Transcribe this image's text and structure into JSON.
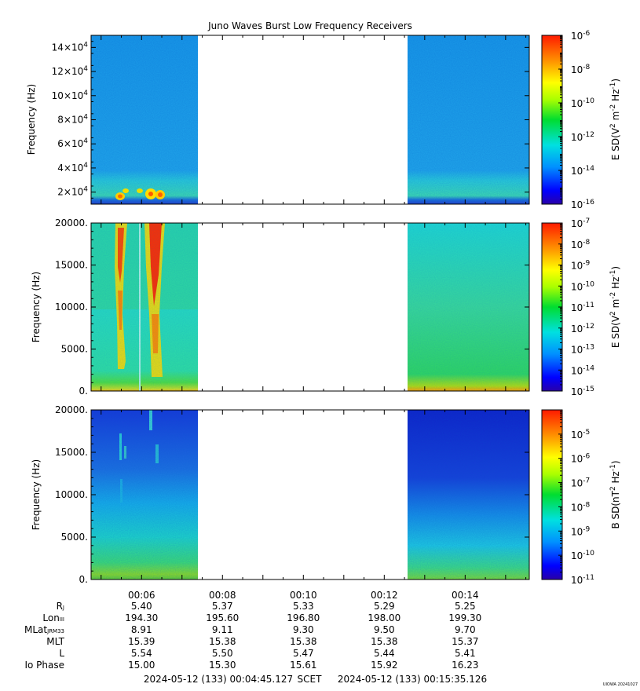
{
  "chart_data": [
    {
      "type": "heatmap",
      "title": "Juno Waves Burst Low Frequency Receivers",
      "ylabel": "Frequency (Hz)",
      "ylim": [
        10000,
        150000
      ],
      "y_ticks": [
        "2×10^4",
        "4×10^4",
        "6×10^4",
        "8×10^4",
        "10×10^4",
        "12×10^4",
        "14×10^4"
      ],
      "colorbar_label": "E SD(V^2 m^-2 Hz^-1)",
      "colorbar_range": [
        1e-16,
        1e-06
      ],
      "colorbar_ticks": [
        "10^-6",
        "10^-8",
        "10^-10",
        "10^-12",
        "10^-14",
        "10^-16"
      ],
      "data_gap": [
        "00:07:30",
        "00:12:35"
      ]
    },
    {
      "type": "heatmap",
      "ylabel": "Frequency (Hz)",
      "ylim": [
        0,
        20000
      ],
      "y_ticks": [
        "0.",
        "5000.",
        "10000.",
        "15000.",
        "20000."
      ],
      "colorbar_label": "E SD(V^2 m^-2 Hz^-1)",
      "colorbar_range": [
        1e-15,
        1e-07
      ],
      "colorbar_ticks": [
        "10^-7",
        "10^-8",
        "10^-9",
        "10^-10",
        "10^-11",
        "10^-12",
        "10^-13",
        "10^-14",
        "10^-15"
      ],
      "data_gap": [
        "00:07:30",
        "00:12:35"
      ]
    },
    {
      "type": "heatmap",
      "ylabel": "Frequency (Hz)",
      "ylim": [
        0,
        20000
      ],
      "y_ticks": [
        "0.",
        "5000.",
        "10000.",
        "15000.",
        "20000."
      ],
      "colorbar_label": "B SD(nT^2 Hz^-1)",
      "colorbar_range": [
        1e-11,
        0.0001
      ],
      "colorbar_ticks": [
        "10^-5",
        "10^-6",
        "10^-7",
        "10^-8",
        "10^-9",
        "10^-10",
        "10^-11"
      ],
      "data_gap": [
        "00:07:30",
        "00:12:35"
      ]
    }
  ],
  "x_axis": {
    "ticks": [
      "00:06",
      "00:08",
      "00:10",
      "00:12",
      "00:14"
    ],
    "start": "2024-05-12 (133) 00:04:45.127",
    "mid_label": "SCET",
    "end": "2024-05-12 (133) 00:15:35.126"
  },
  "ephemeris": {
    "labels": {
      "rj": "R",
      "rj_sub": "J",
      "lon": "Lon",
      "lon_sub": "III",
      "mlat": "MLat",
      "mlat_sub": "JRM33",
      "mlt": "MLT",
      "l": "L",
      "io": "Io Phase"
    },
    "columns": [
      {
        "time": "00:06",
        "rj": "5.40",
        "lon": "194.30",
        "mlat": "8.91",
        "mlt": "15.39",
        "l": "5.54",
        "io": "15.00"
      },
      {
        "time": "00:08",
        "rj": "5.37",
        "lon": "195.60",
        "mlat": "9.11",
        "mlt": "15.38",
        "l": "5.50",
        "io": "15.30"
      },
      {
        "time": "00:10",
        "rj": "5.33",
        "lon": "196.80",
        "mlat": "9.30",
        "mlt": "15.38",
        "l": "5.47",
        "io": "15.61"
      },
      {
        "time": "00:12",
        "rj": "5.29",
        "lon": "198.00",
        "mlat": "9.50",
        "mlt": "15.38",
        "l": "5.44",
        "io": "15.92"
      },
      {
        "time": "00:14",
        "rj": "5.25",
        "lon": "199.30",
        "mlat": "9.70",
        "mlt": "15.37",
        "l": "5.41",
        "io": "16.23"
      }
    ]
  },
  "footer_tag": "UIOWA 20241027"
}
